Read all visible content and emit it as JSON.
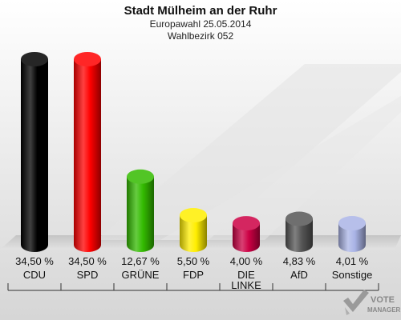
{
  "header": {
    "title": "Stadt Mülheim an der Ruhr",
    "subtitle": "Europawahl 25.05.2014",
    "district": "Wahlbezirk 052"
  },
  "chart_data": {
    "type": "bar",
    "title": "Stadt Mülheim an der Ruhr",
    "subtitle": "Europawahl 25.05.2014 / Wahlbezirk 052",
    "categories": [
      "CDU",
      "SPD",
      "GRÜNE",
      "FDP",
      "DIE LINKE",
      "AfD",
      "Sonstige"
    ],
    "values": [
      34.5,
      34.5,
      12.67,
      5.5,
      4.0,
      4.83,
      4.01
    ],
    "labels": [
      "34,50 %",
      "34,50 %",
      "12,67 %",
      "5,50 %",
      "4,00 %",
      "4,83 %",
      "4,01 %"
    ],
    "category_lines": [
      [
        "CDU"
      ],
      [
        "SPD"
      ],
      [
        "GRÜNE"
      ],
      [
        "FDP"
      ],
      [
        "DIE",
        "LINKE"
      ],
      [
        "AfD"
      ],
      [
        "Sonstige"
      ]
    ],
    "colors": [
      "#000000",
      "#ff0000",
      "#33bb00",
      "#ffee00",
      "#cc0044",
      "#555555",
      "#aab4e6"
    ],
    "ylim": [
      0,
      34.5
    ],
    "grid": false,
    "legend": "none"
  },
  "logo": {
    "line1": "VOTE",
    "line2": "MANAGER"
  }
}
